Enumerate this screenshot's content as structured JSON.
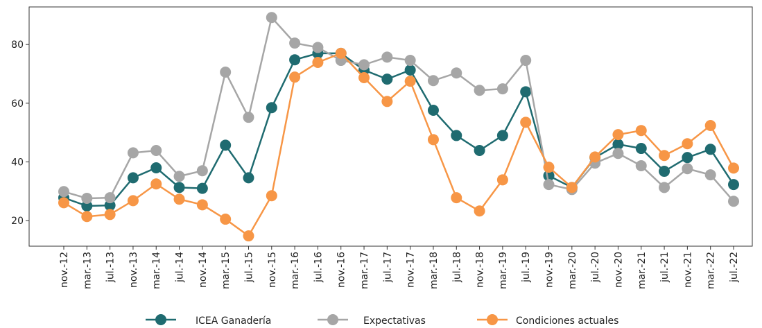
{
  "chart_data": {
    "type": "line",
    "categories": [
      "nov.-12",
      "mar.-13",
      "jul.-13",
      "nov.-13",
      "mar.-14",
      "jul.-14",
      "nov.-14",
      "mar.-15",
      "jul.-15",
      "nov.-15",
      "mar.-16",
      "jul.-16",
      "nov.-16",
      "mar.-17",
      "jul.-17",
      "nov.-17",
      "mar.-18",
      "jul.-18",
      "nov.-18",
      "mar.-19",
      "jul.-19",
      "nov.-19",
      "mar.-20",
      "jul.-20",
      "nov.-20",
      "mar.-21",
      "jul.-21",
      "nov.-21",
      "mar.-22",
      "jul.-22"
    ],
    "series": [
      {
        "name": "ICEA Ganadería",
        "color": "#1f6b70",
        "values": [
          27.8,
          25,
          25.2,
          34.6,
          38,
          31.3,
          31,
          45.7,
          34.6,
          58.5,
          74.8,
          77,
          77,
          71.3,
          68.2,
          71.3,
          57.6,
          49,
          43.9,
          49,
          63.9,
          35.3,
          31.3,
          41.5,
          46,
          44.6,
          36.8,
          41.5,
          44.3,
          32.3
        ]
      },
      {
        "name": "Expectativas",
        "color": "#a6a6a6",
        "values": [
          29.9,
          27.6,
          27.8,
          43.1,
          43.9,
          35.1,
          37,
          70.6,
          55.2,
          89.2,
          80.5,
          79,
          74.6,
          73.1,
          75.7,
          74.6,
          67.7,
          70.3,
          64.4,
          64.9,
          74.6,
          32.3,
          30.6,
          39.6,
          42.9,
          38.7,
          31.3,
          37.7,
          35.6,
          26.6
        ]
      },
      {
        "name": "Condiciones actuales",
        "color": "#f79646",
        "values": [
          26.1,
          21.4,
          22.1,
          26.8,
          32.5,
          27.3,
          25.4,
          20.5,
          14.8,
          28.5,
          68.9,
          73.9,
          77,
          68.7,
          60.6,
          67.5,
          47.6,
          27.8,
          23.3,
          33.9,
          53.5,
          38.2,
          31.3,
          41.7,
          49.3,
          50.7,
          42.2,
          46.2,
          52.4,
          37.9
        ]
      }
    ],
    "ylim": [
      11.3,
      92.8
    ],
    "yticks": [
      20,
      40,
      60,
      80
    ],
    "grid": false,
    "legend": "bottom"
  }
}
